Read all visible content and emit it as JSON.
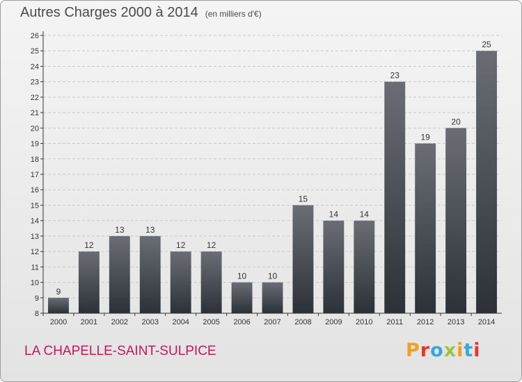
{
  "header": {
    "title": "Autres Charges 2000 à 2014",
    "subtitle": "(en milliers d'€)"
  },
  "footer": {
    "city": "LA CHAPELLE-SAINT-SULPICE",
    "brand": "Proxiti",
    "brand_colors": [
      "#f0a020",
      "#e8352a",
      "#3aa6e0",
      "#9bc63b",
      "#f0a020",
      "#3aa6e0",
      "#e8352a"
    ]
  },
  "colors": {
    "bar_top": "#6a6e74",
    "bar_bottom": "#2c3138",
    "grid": "#c8c8c8",
    "axis": "#333333"
  },
  "chart_data": {
    "type": "bar",
    "title": "Autres Charges 2000 à 2014",
    "subtitle": "(en milliers d'€)",
    "categories": [
      "2000",
      "2001",
      "2002",
      "2003",
      "2004",
      "2005",
      "2006",
      "2007",
      "2008",
      "2009",
      "2010",
      "2011",
      "2012",
      "2013",
      "2014"
    ],
    "values": [
      9,
      12,
      13,
      13,
      12,
      12,
      10,
      10,
      15,
      14,
      14,
      23,
      19,
      20,
      25
    ],
    "ylim": [
      8,
      26
    ],
    "yticks": [
      8,
      9,
      10,
      11,
      12,
      13,
      14,
      15,
      16,
      17,
      18,
      19,
      20,
      21,
      22,
      23,
      24,
      25,
      26
    ],
    "grid": true,
    "legend": false
  }
}
